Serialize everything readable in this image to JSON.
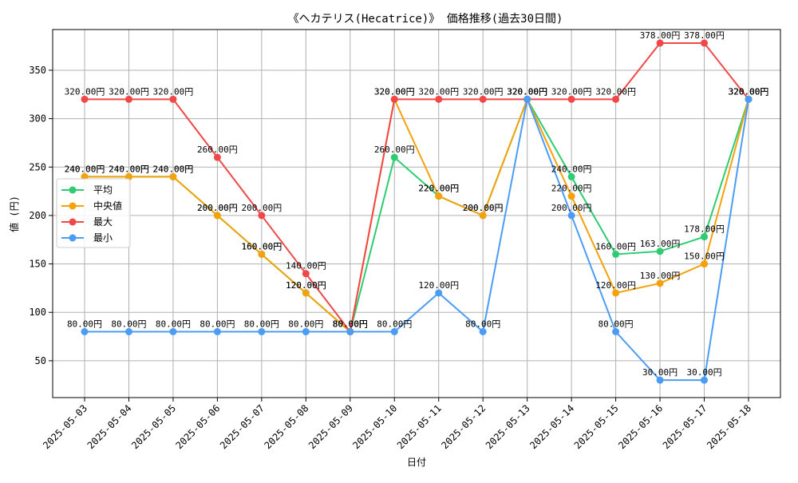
{
  "chart_data": {
    "type": "line",
    "title": "《ヘカテリス(Hecatrice)》 価格推移(過去30日間)",
    "xlabel": "日付",
    "ylabel": "値 (円)",
    "value_suffix": "円",
    "categories": [
      "2025-05-03",
      "2025-05-04",
      "2025-05-05",
      "2025-05-06",
      "2025-05-07",
      "2025-05-08",
      "2025-05-09",
      "2025-05-10",
      "2025-05-11",
      "2025-05-12",
      "2025-05-13",
      "2025-05-14",
      "2025-05-15",
      "2025-05-16",
      "2025-05-17",
      "2025-05-18"
    ],
    "ylim": [
      12,
      392
    ],
    "yticks": [
      50,
      100,
      150,
      200,
      250,
      300,
      350
    ],
    "grid": true,
    "legend_position": "center-left",
    "series": [
      {
        "name": "平均",
        "color": "#2ecc71",
        "values": [
          240,
          240,
          240,
          200,
          160,
          120,
          80,
          260,
          220,
          200,
          320,
          240,
          160,
          163,
          178,
          320
        ]
      },
      {
        "name": "中央値",
        "color": "#f5a10a",
        "values": [
          240,
          240,
          240,
          200,
          160,
          120,
          80,
          320,
          220,
          200,
          320,
          220,
          120,
          130,
          150,
          320
        ]
      },
      {
        "name": "最大",
        "color": "#f04848",
        "values": [
          320,
          320,
          320,
          260,
          200,
          140,
          80,
          320,
          320,
          320,
          320,
          320,
          320,
          378,
          378,
          320
        ]
      },
      {
        "name": "最小",
        "color": "#4a9cf5",
        "values": [
          80,
          80,
          80,
          80,
          80,
          80,
          80,
          80,
          120,
          80,
          320,
          200,
          80,
          30,
          30,
          320
        ]
      }
    ]
  }
}
